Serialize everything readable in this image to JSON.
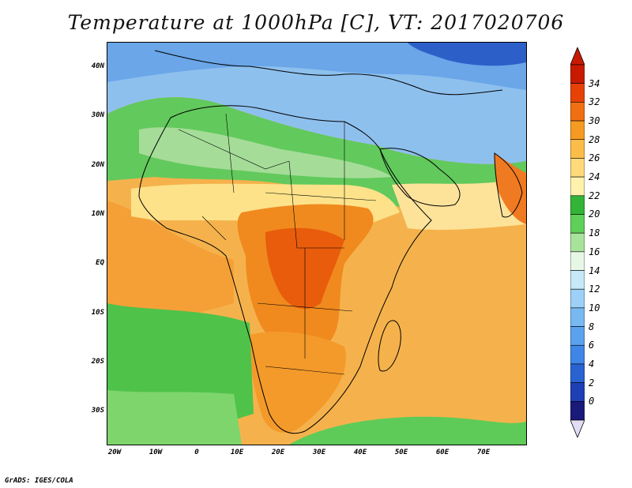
{
  "title": "Temperature at 1000hPa [C], VT: 2017020706",
  "footer": "GrADS: IGES/COLA",
  "map": {
    "lat_range": [
      -37,
      45
    ],
    "lon_range": [
      -23,
      81
    ],
    "lat_labels": [
      {
        "value": 40,
        "text": "40N"
      },
      {
        "value": 30,
        "text": "30N"
      },
      {
        "value": 20,
        "text": "20N"
      },
      {
        "value": 10,
        "text": "10N"
      },
      {
        "value": 0,
        "text": "EQ"
      },
      {
        "value": -10,
        "text": "10S"
      },
      {
        "value": -20,
        "text": "20S"
      },
      {
        "value": -30,
        "text": "30S"
      }
    ],
    "lon_labels": [
      {
        "value": -20,
        "text": "20W"
      },
      {
        "value": -10,
        "text": "10W"
      },
      {
        "value": 0,
        "text": "0"
      },
      {
        "value": 10,
        "text": "10E"
      },
      {
        "value": 20,
        "text": "20E"
      },
      {
        "value": 30,
        "text": "30E"
      },
      {
        "value": 40,
        "text": "40E"
      },
      {
        "value": 50,
        "text": "50E"
      },
      {
        "value": 60,
        "text": "60E"
      },
      {
        "value": 70,
        "text": "70E"
      }
    ]
  },
  "colorbar": {
    "levels": [
      0,
      2,
      4,
      6,
      8,
      10,
      12,
      14,
      16,
      18,
      20,
      22,
      24,
      26,
      28,
      30,
      32,
      34
    ],
    "colors": [
      "#1a1a7a",
      "#1f3fb4",
      "#2a62d2",
      "#3f86e6",
      "#5aa2ee",
      "#78b9f2",
      "#9dd0f6",
      "#c6e8f7",
      "#e6f7e6",
      "#a8e39c",
      "#5fcf5a",
      "#32b436",
      "#fff2ac",
      "#ffd97a",
      "#fbbd4a",
      "#f59a22",
      "#ef7012",
      "#e64206",
      "#c81a00"
    ],
    "under_color": "#e2dcf5",
    "over_color": "#c81a00"
  }
}
